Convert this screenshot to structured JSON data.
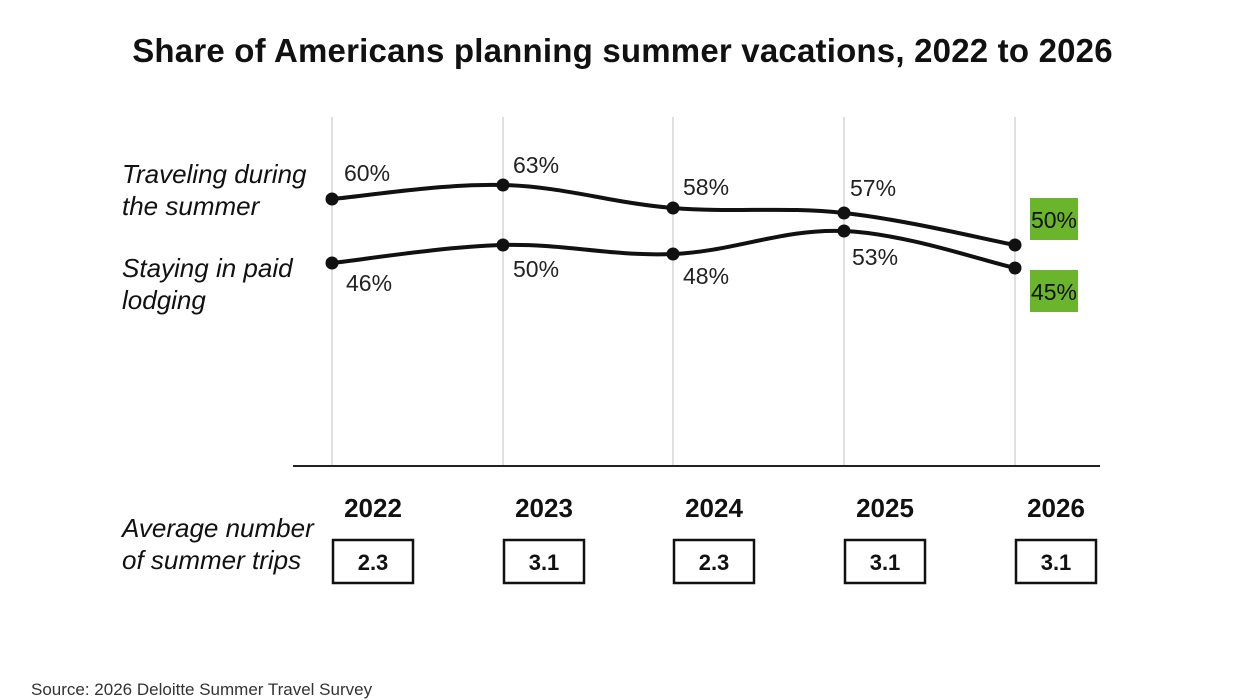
{
  "chart_data": {
    "type": "line",
    "title": "Share of Americans planning summer vacations, 2022 to 2026",
    "categories": [
      "2022",
      "2023",
      "2024",
      "2025",
      "2026"
    ],
    "series": [
      {
        "name": "Traveling during the summer",
        "values": [
          60,
          63,
          58,
          57,
          50
        ],
        "labels": [
          "60%",
          "63%",
          "58%",
          "57%",
          "50%"
        ]
      },
      {
        "name": "Staying in paid lodging",
        "values": [
          46,
          50,
          48,
          53,
          45
        ],
        "labels": [
          "46%",
          "50%",
          "48%",
          "53%",
          "45%"
        ]
      }
    ],
    "average_trips": {
      "label": "Average number of summer trips",
      "values": [
        "2.3",
        "3.1",
        "2.3",
        "3.1",
        "3.1"
      ]
    },
    "ylim": [
      20,
      66
    ],
    "grid": "vertical",
    "highlight_color": "#6bb52d",
    "line_color": "#111111"
  },
  "source": "Source: 2026 Deloitte Summer Travel Survey"
}
